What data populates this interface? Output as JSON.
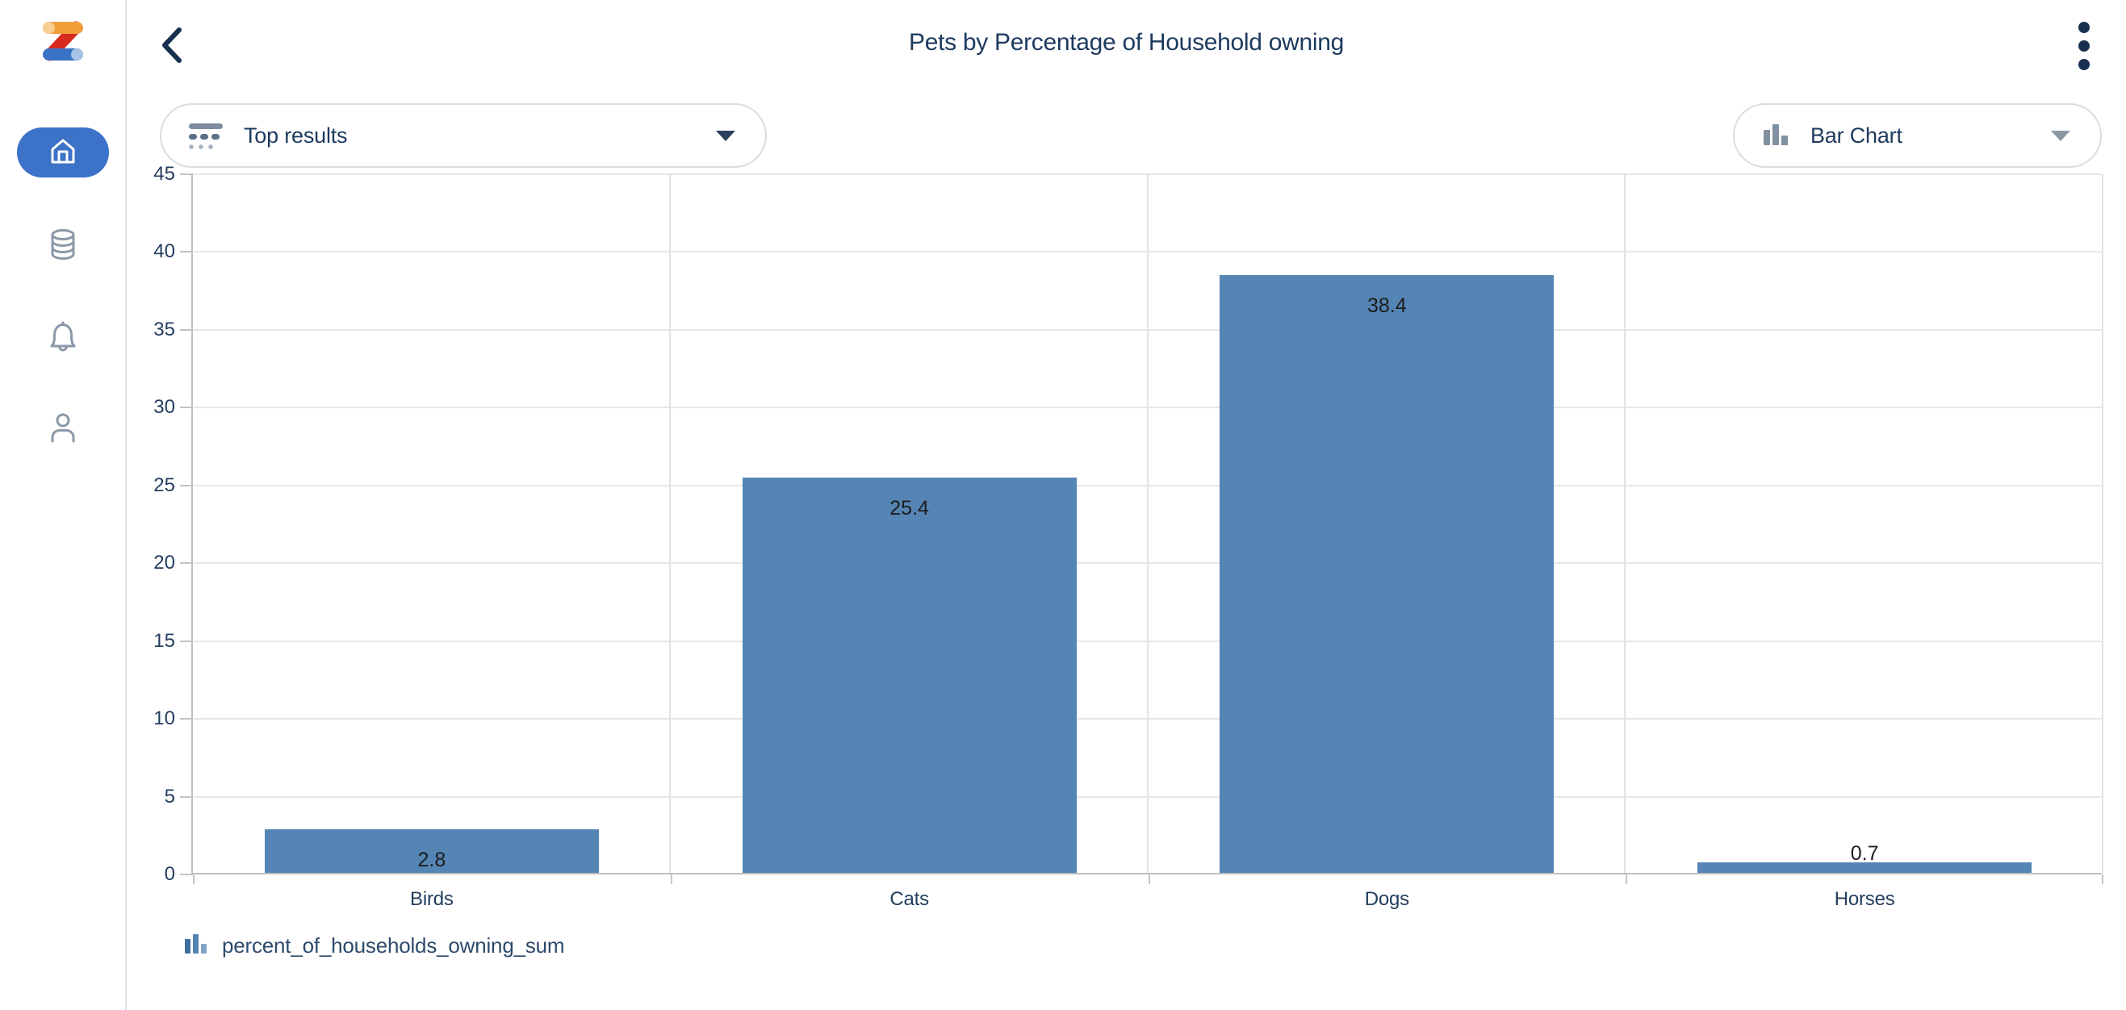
{
  "app": {
    "name": "Zing Data",
    "logo_icon": "zing-logo"
  },
  "sidebar": {
    "items": [
      {
        "icon": "home-icon",
        "active": true
      },
      {
        "icon": "database-icon",
        "active": false
      },
      {
        "icon": "bell-icon",
        "active": false
      },
      {
        "icon": "profile-icon",
        "active": false
      }
    ]
  },
  "header": {
    "back_icon": "back-chevron-icon",
    "title": "Pets by Percentage of Household owning",
    "menu_icon": "kebab-menu-icon"
  },
  "controls": {
    "top_results_label": "Top results",
    "top_results_icon": "top-results-filter-icon",
    "chart_type_label": "Bar Chart",
    "chart_type_icon": "bar-chart-icon",
    "caret_icon": "chevron-down-icon"
  },
  "chart_data": {
    "type": "bar",
    "title": "Pets by Percentage of Household owning",
    "categories": [
      "Birds",
      "Cats",
      "Dogs",
      "Horses"
    ],
    "series": [
      {
        "name": "percent_of_households_owning_sum",
        "values": [
          2.8,
          25.4,
          38.4,
          0.7
        ]
      }
    ],
    "value_labels": [
      "2.8",
      "25.4",
      "38.4",
      "0.7"
    ],
    "xlabel": "",
    "ylabel": "",
    "ylim": [
      0,
      45
    ],
    "yticks": [
      0,
      5,
      10,
      15,
      20,
      25,
      30,
      35,
      40,
      45
    ],
    "grid": true,
    "legend_position": "bottom-left",
    "bar_color": "#5585b5"
  },
  "legend": {
    "icon": "bar-series-icon",
    "label": "percent_of_households_owning_sum"
  },
  "colors": {
    "accent_blue": "#3c72c7",
    "bar_blue": "#5585b5",
    "navy_text": "#1d3a5e",
    "icon_gray": "#8b98a9",
    "gridline": "#e7e7e7",
    "logo_orange": "#f09d3a",
    "logo_red": "#d62c1f",
    "logo_blue": "#3a72c6"
  }
}
